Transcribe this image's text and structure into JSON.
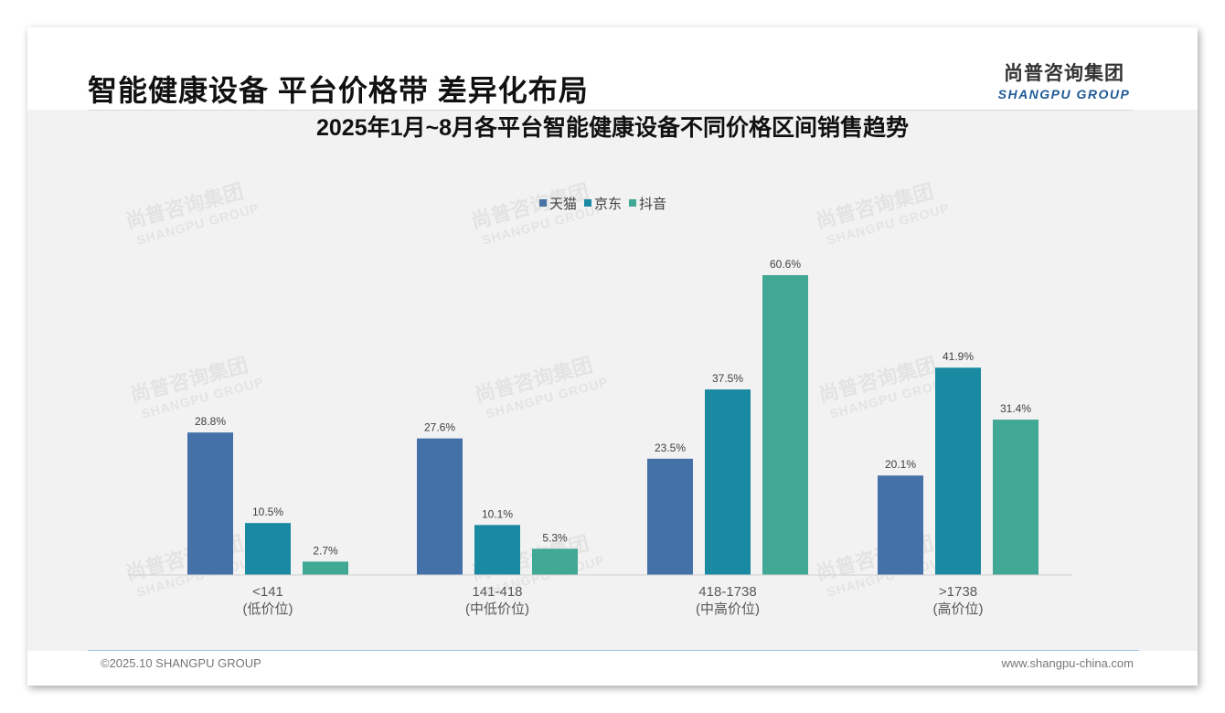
{
  "header": {
    "title": "智能健康设备 平台价格带 差异化布局",
    "logo_cn": "尚普咨询集团",
    "logo_en": "SHANGPU GROUP"
  },
  "watermark": {
    "cn": "尚普咨询集团",
    "en": "SHANGPU GROUP"
  },
  "footer": {
    "copyright": "©2025.10 SHANGPU GROUP",
    "website": "www.shangpu-china.com"
  },
  "chart_data": {
    "type": "bar",
    "title": "2025年1月~8月各平台智能健康设备不同价格区间销售趋势",
    "categories": [
      "<141",
      "141-418",
      "418-1738",
      ">1738"
    ],
    "category_sublabels": [
      "(低价位)",
      "(中低价位)",
      "(中高价位)",
      "(高价位)"
    ],
    "series": [
      {
        "name": "天猫",
        "color": "#4472a8",
        "values": [
          28.8,
          27.6,
          23.5,
          20.1
        ],
        "labels": [
          "28.8%",
          "27.6%",
          "23.5%",
          "20.1%"
        ]
      },
      {
        "name": "京东",
        "color": "#1a8aa3",
        "values": [
          10.5,
          10.1,
          37.5,
          41.9
        ],
        "labels": [
          "10.5%",
          "10.1%",
          "37.5%",
          "41.9%"
        ]
      },
      {
        "name": "抖音",
        "color": "#41a896",
        "values": [
          2.7,
          5.3,
          60.6,
          31.4
        ],
        "labels": [
          "2.7%",
          "5.3%",
          "60.6%",
          "31.4%"
        ]
      }
    ],
    "ylim": [
      0,
      60.6
    ],
    "legend_position": "top-center",
    "grid": false,
    "xlabel": "",
    "ylabel": ""
  }
}
